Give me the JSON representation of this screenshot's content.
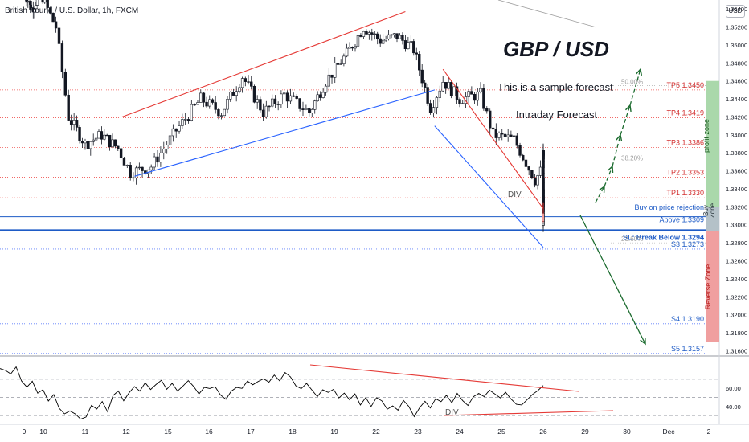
{
  "header": {
    "symbol_title": "British Pound / U.S. Dollar, 1h, FXCM"
  },
  "annotations": {
    "title": "GBP / USD",
    "subtitle": "This is a sample forecast",
    "subtitle2": "Intraday Forecast",
    "div_main": "DIV",
    "div_rsi": "DIV",
    "profit_zone": "profit zone",
    "buy_zone": "Buy Zone",
    "reverse_zone": "Reverse Zone"
  },
  "colors": {
    "price_scale_label": "#1e5bc6",
    "trend_red": "#e53935",
    "trend_blue": "#2962ff",
    "forecast_green": "#1b6b2e",
    "profit_zone": "#a5d6a7",
    "reverse_zone": "#ef9a9a",
    "buy_zone": "#b0bec5",
    "rsi_line": "#000000"
  },
  "chart_data": [
    {
      "type": "candlestick",
      "title": "British Pound / U.S. Dollar, 1h, FXCM",
      "currency": "USD",
      "ylim": [
        1.3155,
        1.355
      ],
      "y_ticks": [
        1.316,
        1.318,
        1.32,
        1.322,
        1.324,
        1.326,
        1.328,
        1.33,
        1.332,
        1.334,
        1.336,
        1.338,
        1.34,
        1.342,
        1.344,
        1.346,
        1.348,
        1.35,
        1.352,
        1.354
      ],
      "y_tick_labels": [
        "1.31600",
        "1.31800",
        "1.32000",
        "1.32200",
        "1.32400",
        "1.32600",
        "1.32800",
        "1.33000",
        "1.33200",
        "1.33400",
        "1.33600",
        "1.33800",
        "1.34000",
        "1.34200",
        "1.34400",
        "1.34600",
        "1.34800",
        "1.35000",
        "1.35200",
        "1.35400"
      ],
      "x_tick_labels": [
        "9",
        "10",
        "11",
        "12",
        "15",
        "16",
        "17",
        "18",
        "19",
        "22",
        "23",
        "24",
        "25",
        "26",
        "29",
        "30",
        "Dec",
        "2"
      ],
      "key_path": [
        {
          "day": 9.0,
          "price": 1.356
        },
        {
          "day": 9.4,
          "price": 1.354
        },
        {
          "day": 9.9,
          "price": 1.356
        },
        {
          "day": 10.3,
          "price": 1.352
        },
        {
          "day": 10.6,
          "price": 1.342
        },
        {
          "day": 11.0,
          "price": 1.339
        },
        {
          "day": 11.4,
          "price": 1.34
        },
        {
          "day": 11.8,
          "price": 1.3385
        },
        {
          "day": 12.1,
          "price": 1.3358
        },
        {
          "day": 12.6,
          "price": 1.3365
        },
        {
          "day": 13.2,
          "price": 1.3405
        },
        {
          "day": 13.8,
          "price": 1.344
        },
        {
          "day": 14.3,
          "price": 1.3425
        },
        {
          "day": 14.8,
          "price": 1.3465
        },
        {
          "day": 15.3,
          "price": 1.3425
        },
        {
          "day": 15.8,
          "price": 1.3445
        },
        {
          "day": 16.4,
          "price": 1.3425
        },
        {
          "day": 16.8,
          "price": 1.346
        },
        {
          "day": 17.3,
          "price": 1.349
        },
        {
          "day": 17.7,
          "price": 1.352
        },
        {
          "day": 18.1,
          "price": 1.3505
        },
        {
          "day": 18.5,
          "price": 1.351
        },
        {
          "day": 18.9,
          "price": 1.3495
        },
        {
          "day": 19.3,
          "price": 1.343
        },
        {
          "day": 19.6,
          "price": 1.346
        },
        {
          "day": 20.0,
          "price": 1.344
        },
        {
          "day": 20.5,
          "price": 1.3445
        },
        {
          "day": 20.8,
          "price": 1.34
        },
        {
          "day": 21.3,
          "price": 1.3395
        },
        {
          "day": 21.8,
          "price": 1.335
        },
        {
          "day": 22.2,
          "price": 1.3378
        },
        {
          "day": 22.6,
          "price": 1.338
        },
        {
          "day": 23.0,
          "price": 1.334
        },
        {
          "day": 23.4,
          "price": 1.3325
        },
        {
          "day": 23.8,
          "price": 1.3345
        },
        {
          "day": 24.2,
          "price": 1.332
        },
        {
          "day": 24.6,
          "price": 1.3325
        },
        {
          "day": 24.9,
          "price": 1.3305
        },
        {
          "day": 25.1,
          "price": 1.3305
        },
        {
          "day": 25.25,
          "price": 1.3318
        }
      ],
      "horizontal_levels": [
        {
          "label": "TP5 1.3450",
          "price": 1.345,
          "style": "dotted-red"
        },
        {
          "label": "TP4 1.3419",
          "price": 1.3419,
          "style": "dotted-red"
        },
        {
          "label": "TP3 1.3386",
          "price": 1.3386,
          "style": "dotted-red"
        },
        {
          "label": "TP2 1.3353",
          "price": 1.3353,
          "style": "dotted-red"
        },
        {
          "label": "TP1 1.3330",
          "price": 1.333,
          "style": "dotted-red"
        },
        {
          "label": "Buy on price rejection",
          "price": 1.3315,
          "style": "text-blue"
        },
        {
          "label": "Above 1.3309",
          "price": 1.3309,
          "style": "solid-blue-thin"
        },
        {
          "label": "SL: Break Below 1.3294",
          "price": 1.3294,
          "style": "solid-blue-thick"
        },
        {
          "label": "S3 1.3273",
          "price": 1.3273,
          "style": "dotted-blue"
        },
        {
          "label": "S4 1.3190",
          "price": 1.319,
          "style": "dotted-blue"
        },
        {
          "label": "S5 1.3157",
          "price": 1.3157,
          "style": "dotted-blue"
        }
      ],
      "fib_labels": [
        {
          "label": "50.00%",
          "price": 1.3455
        },
        {
          "label": "38.20%",
          "price": 1.337
        },
        {
          "label": "23.60%",
          "price": 1.328
        }
      ],
      "zones": [
        {
          "name": "profit zone",
          "from": 1.332,
          "to": 1.346
        },
        {
          "name": "Buy Zone",
          "from": 1.3293,
          "to": 1.332
        },
        {
          "name": "Reverse Zone",
          "from": 1.317,
          "to": 1.3293
        }
      ]
    },
    {
      "type": "line",
      "title": "RSI",
      "ylim": [
        23,
        93
      ],
      "y_ticks": [
        40,
        60
      ],
      "y_tick_labels": [
        "40.00",
        "60.00"
      ],
      "series": [
        {
          "values": [
            82,
            78,
            75,
            82,
            70,
            60,
            66,
            56,
            60,
            48,
            52,
            40,
            32,
            36,
            30,
            25,
            30,
            42,
            38,
            45,
            34,
            52,
            58,
            48,
            54,
            62,
            58,
            66,
            58,
            64,
            70,
            60,
            66,
            58,
            62,
            70,
            64,
            55,
            62,
            58,
            62,
            54,
            48,
            56,
            62,
            58,
            68,
            62,
            66,
            72,
            66,
            74,
            70,
            76,
            72,
            62,
            58,
            66,
            58,
            52,
            60,
            54,
            60,
            50,
            56,
            48,
            54,
            40,
            48,
            42,
            50,
            46,
            38,
            42,
            36,
            46,
            40,
            30,
            38,
            44,
            40,
            48,
            44,
            52,
            46,
            54,
            48,
            42,
            50,
            56,
            50,
            58,
            52,
            48,
            56,
            50,
            44,
            40,
            46,
            52,
            58,
            62
          ]
        }
      ]
    }
  ]
}
